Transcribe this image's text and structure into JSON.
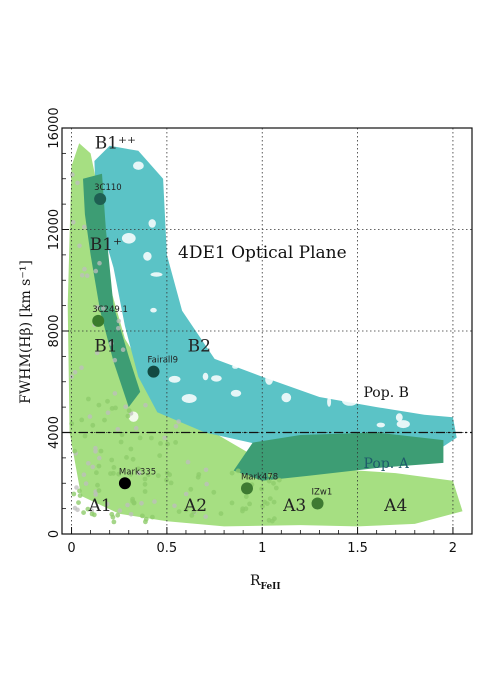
{
  "chart_data": {
    "type": "scatter",
    "title": "4DE1 Optical Plane",
    "xlabel": "R",
    "xlabel_sub": "FeII",
    "ylabel": "FWHM(Hβ) [km s⁻¹]",
    "xlim": [
      -0.05,
      2.1
    ],
    "ylim": [
      0,
      16000
    ],
    "x_ticks": [
      "0",
      "0.5",
      "1",
      "1.5",
      "2"
    ],
    "y_ticks": [
      "0",
      "4000",
      "8000",
      "12000",
      "16000"
    ],
    "grid": "dotted",
    "pop_divider_y": 4000,
    "colors": {
      "light_green": "#a6df82",
      "teal": "#5bc3c6",
      "dark_green": "#3d9d74",
      "gray_points": "#bdbdbd",
      "green_points": "#8fcc6c"
    },
    "regions": [
      {
        "name": "A1",
        "x": 0.15,
        "y": 900
      },
      {
        "name": "A2",
        "x": 0.65,
        "y": 900
      },
      {
        "name": "A3",
        "x": 1.17,
        "y": 900
      },
      {
        "name": "A4",
        "x": 1.7,
        "y": 900
      },
      {
        "name": "B1",
        "x": 0.18,
        "y": 7200
      },
      {
        "name": "B2",
        "x": 0.67,
        "y": 7200
      },
      {
        "name": "B1⁺",
        "x": 0.18,
        "y": 11200
      },
      {
        "name": "B1⁺⁺",
        "x": 0.23,
        "y": 15200
      }
    ],
    "populations": [
      {
        "name": "Pop. B",
        "x": 1.65,
        "y": 5400,
        "color": "#111111"
      },
      {
        "name": "Pop. A",
        "x": 1.65,
        "y": 2600,
        "color": "#1e5a6a"
      }
    ],
    "objects": [
      {
        "name": "3C110",
        "x": 0.15,
        "y": 13200,
        "color": "#1e5f52"
      },
      {
        "name": "3C249.1",
        "x": 0.14,
        "y": 8400,
        "color": "#3a7b2c"
      },
      {
        "name": "Fairall9",
        "x": 0.43,
        "y": 6400,
        "color": "#124a42"
      },
      {
        "name": "Mark335",
        "x": 0.28,
        "y": 2000,
        "color": "#000000"
      },
      {
        "name": "Mark478",
        "x": 0.92,
        "y": 1800,
        "color": "#3e7a32"
      },
      {
        "name": "IZw1",
        "x": 1.29,
        "y": 1200,
        "color": "#3e7a32"
      }
    ]
  }
}
